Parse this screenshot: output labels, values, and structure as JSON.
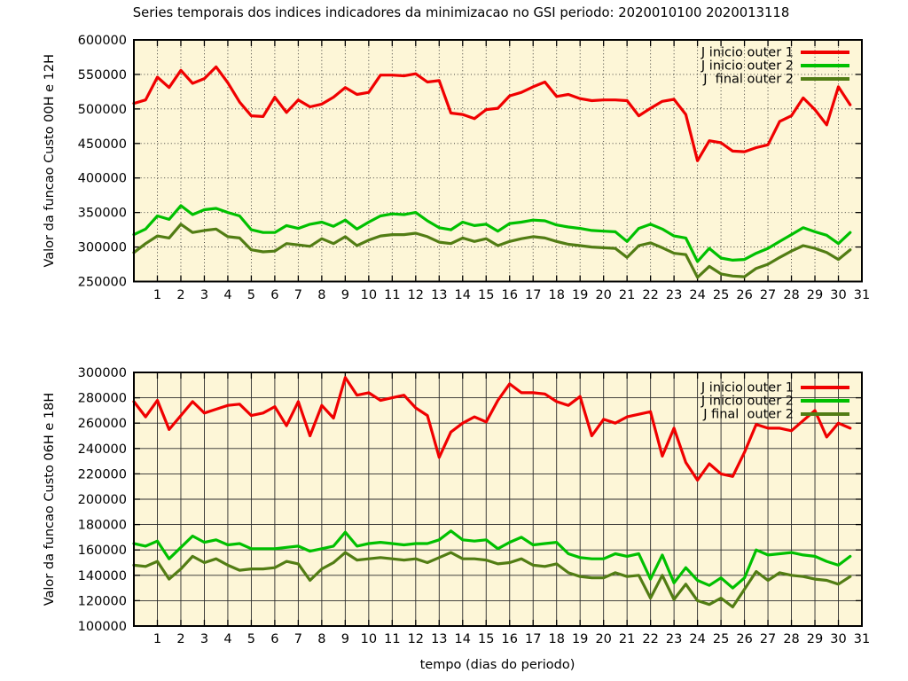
{
  "title": "Series temporais dos indices indicadores da minimizacao no GSI periodo: 2020010100 2020013118",
  "xlabel": "tempo (dias do periodo)",
  "colors": {
    "series1": "#f00000",
    "series2": "#00c000",
    "series3": "#527d14",
    "plot_bg": "#fdf6d7",
    "page_bg": "#ffffff",
    "grid": "#2b2b2b",
    "border": "#000000",
    "text": "#000000"
  },
  "chart_data": [
    {
      "type": "line",
      "ylabel": "Valor da funcao Custo 00H e 12H",
      "xlim": [
        0,
        31
      ],
      "ylim": [
        250000,
        600000
      ],
      "grid_style": "dotted",
      "legend_position": "top-right-inside",
      "x_start": 0,
      "x_step": 0.5,
      "xticks": [
        1,
        2,
        3,
        4,
        5,
        6,
        7,
        8,
        9,
        10,
        11,
        12,
        13,
        14,
        15,
        16,
        17,
        18,
        19,
        20,
        21,
        22,
        23,
        24,
        25,
        26,
        27,
        28,
        29,
        30,
        31
      ],
      "yticks": [
        250000,
        300000,
        350000,
        400000,
        450000,
        500000,
        550000,
        600000
      ],
      "series": [
        {
          "name": "J inicio outer 1",
          "color_key": "series1",
          "values": [
            508000,
            513000,
            546000,
            531000,
            556000,
            537000,
            544000,
            561000,
            538000,
            510000,
            490000,
            489000,
            517000,
            495000,
            513000,
            503000,
            507000,
            517000,
            531000,
            521000,
            524000,
            549000,
            549000,
            548000,
            551000,
            539000,
            541000,
            494000,
            492000,
            486000,
            499000,
            501000,
            519000,
            524000,
            532000,
            539000,
            518000,
            521000,
            515000,
            512000,
            513000,
            513000,
            512000,
            490000,
            501000,
            511000,
            514000,
            492000,
            425000,
            454000,
            451000,
            439000,
            438000,
            444000,
            448000,
            482000,
            490000,
            516000,
            499000,
            477000,
            532000,
            506000
          ]
        },
        {
          "name": "J inicio outer 2",
          "color_key": "series2",
          "values": [
            318000,
            326000,
            345000,
            340000,
            360000,
            347000,
            354000,
            356000,
            350000,
            345000,
            325000,
            321000,
            321000,
            331000,
            327000,
            333000,
            336000,
            330000,
            339000,
            326000,
            336000,
            345000,
            348000,
            347000,
            350000,
            338000,
            328000,
            325000,
            336000,
            331000,
            333000,
            323000,
            334000,
            336000,
            339000,
            338000,
            332000,
            329000,
            327000,
            324000,
            323000,
            322000,
            308000,
            327000,
            333000,
            326000,
            316000,
            313000,
            279000,
            298000,
            284000,
            281000,
            282000,
            291000,
            298000,
            308000,
            318000,
            328000,
            322000,
            317000,
            305000,
            321000
          ]
        },
        {
          "name": "J  final outer 2",
          "color_key": "series3",
          "values": [
            292000,
            305000,
            316000,
            313000,
            333000,
            321000,
            324000,
            326000,
            315000,
            313000,
            296000,
            293000,
            294000,
            305000,
            303000,
            301000,
            312000,
            305000,
            315000,
            302000,
            310000,
            316000,
            318000,
            318000,
            320000,
            315000,
            307000,
            305000,
            313000,
            308000,
            312000,
            302000,
            308000,
            312000,
            315000,
            313000,
            308000,
            304000,
            302000,
            300000,
            299000,
            298000,
            285000,
            302000,
            306000,
            299000,
            291000,
            289000,
            256000,
            272000,
            261000,
            258000,
            257000,
            269000,
            275000,
            285000,
            294000,
            302000,
            298000,
            292000,
            282000,
            296000
          ]
        }
      ]
    },
    {
      "type": "line",
      "ylabel": "Valor da funcao Custo 06H e 18H",
      "xlim": [
        0,
        31
      ],
      "ylim": [
        100000,
        300000
      ],
      "grid_style": "solid",
      "legend_position": "top-right-inside",
      "x_start": 0,
      "x_step": 0.5,
      "xticks": [
        1,
        2,
        3,
        4,
        5,
        6,
        7,
        8,
        9,
        10,
        11,
        12,
        13,
        14,
        15,
        16,
        17,
        18,
        19,
        20,
        21,
        22,
        23,
        24,
        25,
        26,
        27,
        28,
        29,
        30,
        31
      ],
      "yticks": [
        100000,
        120000,
        140000,
        160000,
        180000,
        200000,
        220000,
        240000,
        260000,
        280000,
        300000
      ],
      "series": [
        {
          "name": "J inicio outer 1",
          "color_key": "series1",
          "values": [
            277000,
            265000,
            278000,
            255000,
            266000,
            277000,
            268000,
            271000,
            274000,
            275000,
            266000,
            268000,
            273000,
            258000,
            277000,
            250000,
            274000,
            264000,
            296000,
            282000,
            284000,
            278000,
            280000,
            282000,
            272000,
            266000,
            233000,
            253000,
            260000,
            265000,
            261000,
            278000,
            291000,
            284000,
            284000,
            283000,
            277000,
            274000,
            281000,
            250000,
            263000,
            260000,
            265000,
            267000,
            269000,
            234000,
            256000,
            229000,
            215000,
            228000,
            220000,
            218000,
            237000,
            259000,
            256000,
            256000,
            254000,
            262000,
            270000,
            249000,
            260000,
            256000
          ]
        },
        {
          "name": "J inicio outer 2",
          "color_key": "series2",
          "values": [
            165000,
            163000,
            167000,
            153000,
            162000,
            171000,
            166000,
            168000,
            164000,
            165000,
            161000,
            161000,
            161000,
            162000,
            163000,
            159000,
            161000,
            163000,
            174000,
            163000,
            165000,
            166000,
            165000,
            164000,
            165000,
            165000,
            168000,
            175000,
            168000,
            167000,
            168000,
            161000,
            166000,
            170000,
            164000,
            165000,
            166000,
            157000,
            154000,
            153000,
            153000,
            157000,
            155000,
            157000,
            137000,
            156000,
            134000,
            146000,
            136000,
            132000,
            138000,
            130000,
            138000,
            160000,
            156000,
            157000,
            158000,
            156000,
            155000,
            151000,
            148000,
            155000
          ]
        },
        {
          "name": "J final  outer 2",
          "color_key": "series3",
          "values": [
            148000,
            147000,
            151000,
            137000,
            145000,
            155000,
            150000,
            153000,
            148000,
            144000,
            145000,
            145000,
            146000,
            151000,
            149000,
            136000,
            145000,
            150000,
            158000,
            152000,
            153000,
            154000,
            153000,
            152000,
            153000,
            150000,
            154000,
            158000,
            153000,
            153000,
            152000,
            149000,
            150000,
            153000,
            148000,
            147000,
            149000,
            142000,
            139000,
            138000,
            138000,
            142000,
            139000,
            140000,
            122000,
            140000,
            121000,
            133000,
            120000,
            117000,
            122000,
            115000,
            129000,
            143000,
            136000,
            142000,
            140000,
            139000,
            137000,
            136000,
            133000,
            139000
          ]
        }
      ]
    }
  ]
}
